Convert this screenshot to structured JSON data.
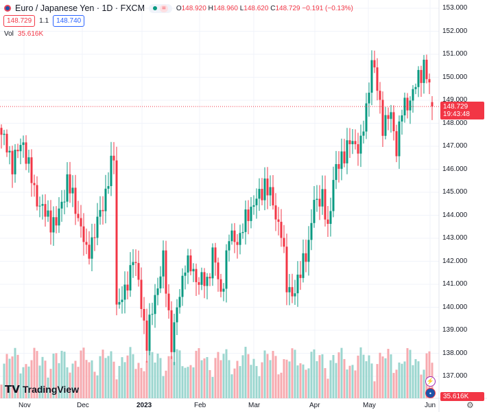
{
  "header": {
    "symbol_title": "Euro / Japanese Yen · 1D · FXCM",
    "status_symbol": "=",
    "open_label": "O",
    "open": "148.920",
    "high_label": "H",
    "high": "148.960",
    "low_label": "L",
    "low": "148.620",
    "close_label": "C",
    "close": "148.729",
    "change": "−0.191 (−0.13%)",
    "sell_price": "148.729",
    "spread": "1.1",
    "buy_price": "148.740",
    "vol_label": "Vol",
    "vol_value": "35.616K"
  },
  "price_axis": {
    "ticks": [
      "153.000",
      "152.000",
      "151.000",
      "150.000",
      "149.000",
      "148.000",
      "147.000",
      "146.000",
      "145.000",
      "144.000",
      "143.000",
      "142.000",
      "141.000",
      "140.000",
      "139.000",
      "138.000",
      "137.000"
    ],
    "last_price": "148.729",
    "countdown": "19:43:48",
    "volume_label": "35.616K"
  },
  "time_axis": {
    "labels": [
      "Nov",
      "Dec",
      "2023",
      "Feb",
      "Mar",
      "Apr",
      "May",
      "Jun"
    ]
  },
  "brand": "TradingView",
  "colors": {
    "up": "#089981",
    "down": "#f23645",
    "vol_up": "#9bd6cf",
    "vol_down": "#f7aaaf"
  },
  "chart_data": {
    "type": "candlestick",
    "title": "EUR/JPY 1D",
    "ylim": [
      136.3,
      153.4
    ],
    "close_keypoints": [
      [
        0,
        147.5
      ],
      [
        4,
        146.3
      ],
      [
        8,
        147.2
      ],
      [
        12,
        145.0
      ],
      [
        16,
        144.0
      ],
      [
        20,
        143.6
      ],
      [
        24,
        145.5
      ],
      [
        28,
        144.0
      ],
      [
        31,
        142.3
      ],
      [
        34,
        143.2
      ],
      [
        38,
        145.0
      ],
      [
        41,
        146.6
      ],
      [
        42,
        140.2
      ],
      [
        45,
        140.5
      ],
      [
        48,
        142.3
      ],
      [
        50,
        141.0
      ],
      [
        53,
        138.5
      ],
      [
        56,
        140.5
      ],
      [
        59,
        142.0
      ],
      [
        62,
        138.5
      ],
      [
        64,
        139.8
      ],
      [
        67,
        142.0
      ],
      [
        71,
        141.3
      ],
      [
        75,
        141.0
      ],
      [
        77,
        142.5
      ],
      [
        80,
        140.5
      ],
      [
        83,
        143.0
      ],
      [
        87,
        143.0
      ],
      [
        90,
        144.2
      ],
      [
        93,
        144.6
      ],
      [
        96,
        145.4
      ],
      [
        99,
        144.5
      ],
      [
        102,
        143.2
      ],
      [
        104,
        141.0
      ],
      [
        107,
        140.5
      ],
      [
        110,
        142.2
      ],
      [
        112,
        142.5
      ],
      [
        114,
        144.8
      ],
      [
        117,
        144.6
      ],
      [
        119,
        143.5
      ],
      [
        121,
        145.5
      ],
      [
        124,
        146.6
      ],
      [
        128,
        147.2
      ],
      [
        131,
        147.0
      ],
      [
        133,
        148.6
      ],
      [
        135,
        150.8
      ],
      [
        137,
        149.5
      ],
      [
        139,
        148.0
      ],
      [
        142,
        148.3
      ],
      [
        144,
        147.0
      ],
      [
        146,
        148.5
      ],
      [
        149,
        149.1
      ],
      [
        151,
        149.6
      ],
      [
        154,
        150.6
      ],
      [
        156,
        149.5
      ],
      [
        157,
        148.73
      ]
    ]
  }
}
